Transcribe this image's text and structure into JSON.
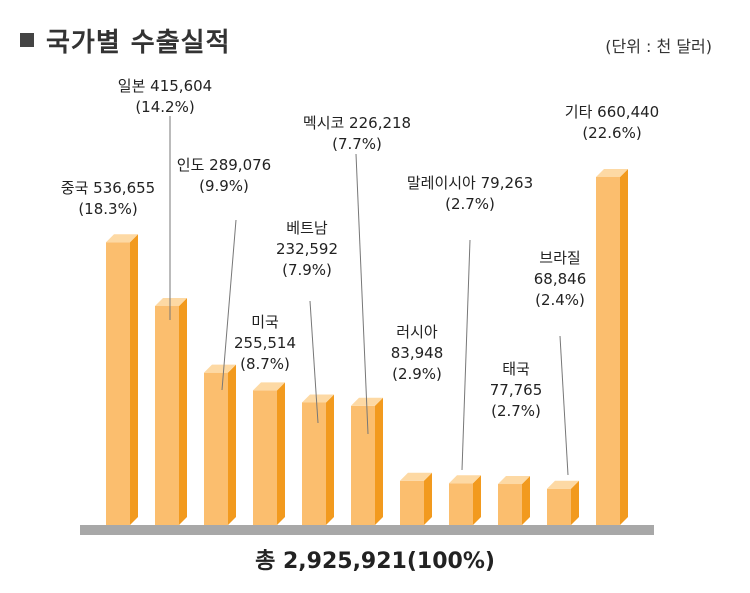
{
  "title": "국가별 수출실적",
  "unit": "(단위 : 천 달러)",
  "total": "총 2,925,921(100%)",
  "chart_data": {
    "type": "bar",
    "categories": [
      "중국",
      "일본",
      "인도",
      "미국",
      "베트남",
      "멕시코",
      "러시아",
      "말레이시아",
      "태국",
      "브라질",
      "기타"
    ],
    "values": [
      536655,
      415604,
      289076,
      255514,
      232592,
      226218,
      83948,
      79263,
      77765,
      68846,
      660440
    ],
    "labels": [
      [
        "중국 536,655",
        "(18.3%)"
      ],
      [
        "일본 415,604",
        "(14.2%)"
      ],
      [
        "인도 289,076",
        "(9.9%)"
      ],
      [
        "미국",
        "255,514",
        "(8.7%)"
      ],
      [
        "베트남",
        "232,592",
        "(7.9%)"
      ],
      [
        "멕시코 226,218",
        "(7.7%)"
      ],
      [
        "러시아",
        "83,948",
        "(2.9%)"
      ],
      [
        "말레이시아 79,263",
        "(2.7%)"
      ],
      [
        "태국",
        "77,765",
        "(2.7%)"
      ],
      [
        "브라질",
        "68,846",
        "(2.4%)"
      ],
      [
        "기타 660,440",
        "(22.6%)"
      ]
    ],
    "colors": {
      "front": "#FBBE6E",
      "side": "#F29A1E",
      "top": "#FDD9A4",
      "base": "#A8A8A8"
    }
  }
}
